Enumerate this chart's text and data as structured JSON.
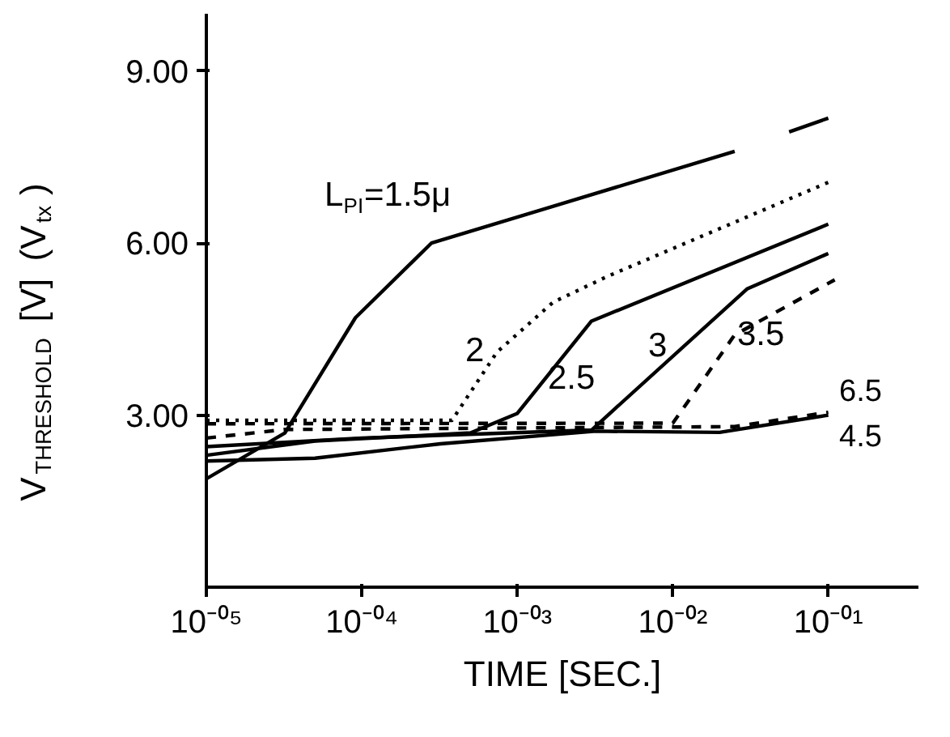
{
  "chart_data": {
    "type": "line",
    "xlabel": "TIME [SEC.]",
    "ylabel": "V$_{THRESHOLD}$ [V] (V$_{tx}$)",
    "log": "x",
    "grid": false,
    "legend": false,
    "marker": "none",
    "xlim": [
      1e-05,
      0.38
    ],
    "xticks": [
      {
        "value": 1e-05,
        "label": "10⁻⁰⁵"
      },
      {
        "value": 0.0001,
        "label": "10⁻⁰⁴"
      },
      {
        "value": 0.001,
        "label": "10⁻⁰³"
      },
      {
        "value": 0.01,
        "label": "10⁻⁰²"
      },
      {
        "value": 0.1,
        "label": "10⁻⁰¹"
      }
    ],
    "ylim": [
      0,
      10
    ],
    "yticks": [
      {
        "value": 3,
        "label": "3.00"
      },
      {
        "value": 6,
        "label": "6.00"
      },
      {
        "value": 9,
        "label": "9.00"
      }
    ],
    "series": [
      {
        "name": "L$_{PI}$=1.5μ",
        "color": "#000000",
        "line_style": "solid",
        "x": [
          1e-05,
          3.2e-05,
          9.1e-05,
          0.00028,
          0.025,
          0.04,
          0.056,
          0.1
        ],
        "values": [
          1.89,
          2.69,
          4.7,
          6.0,
          7.6,
          null,
          7.94,
          8.18
        ]
      },
      {
        "name": "2",
        "color": "#000000",
        "line_style": "dotted",
        "x": [
          1e-05,
          0.00038,
          0.00074,
          0.0017,
          0.0038,
          0.1
        ],
        "values": [
          2.91,
          2.91,
          4.1,
          4.97,
          5.42,
          7.06
        ]
      },
      {
        "name": "2.5",
        "color": "#000000",
        "line_style": "solid",
        "x": [
          1e-05,
          5e-05,
          0.0005,
          0.001,
          0.003,
          0.1
        ],
        "values": [
          2.3,
          2.55,
          2.69,
          3.03,
          4.64,
          6.33
        ]
      },
      {
        "name": "3",
        "color": "#000000",
        "line_style": "solid",
        "x": [
          1e-05,
          0.0001,
          0.003,
          0.03,
          0.1
        ],
        "values": [
          2.45,
          2.6,
          2.74,
          5.2,
          5.82
        ]
      },
      {
        "name": "3.5",
        "color": "#000000",
        "line_style": "dashed",
        "x": [
          1e-05,
          0.01,
          0.025,
          0.11
        ],
        "values": [
          2.85,
          2.86,
          4.4,
          5.36
        ]
      },
      {
        "name": "6.5",
        "color": "#000000",
        "line_style": "dashed",
        "x": [
          1e-05,
          3.2e-05,
          0.025,
          0.1
        ],
        "values": [
          2.6,
          2.75,
          2.8,
          3.05
        ]
      },
      {
        "name": "4.5",
        "color": "#000000",
        "line_style": "solid",
        "x": [
          1e-05,
          5e-05,
          0.00032,
          0.0032,
          0.02,
          0.1
        ],
        "values": [
          2.2,
          2.25,
          2.5,
          2.72,
          2.7,
          3.0
        ]
      }
    ]
  }
}
